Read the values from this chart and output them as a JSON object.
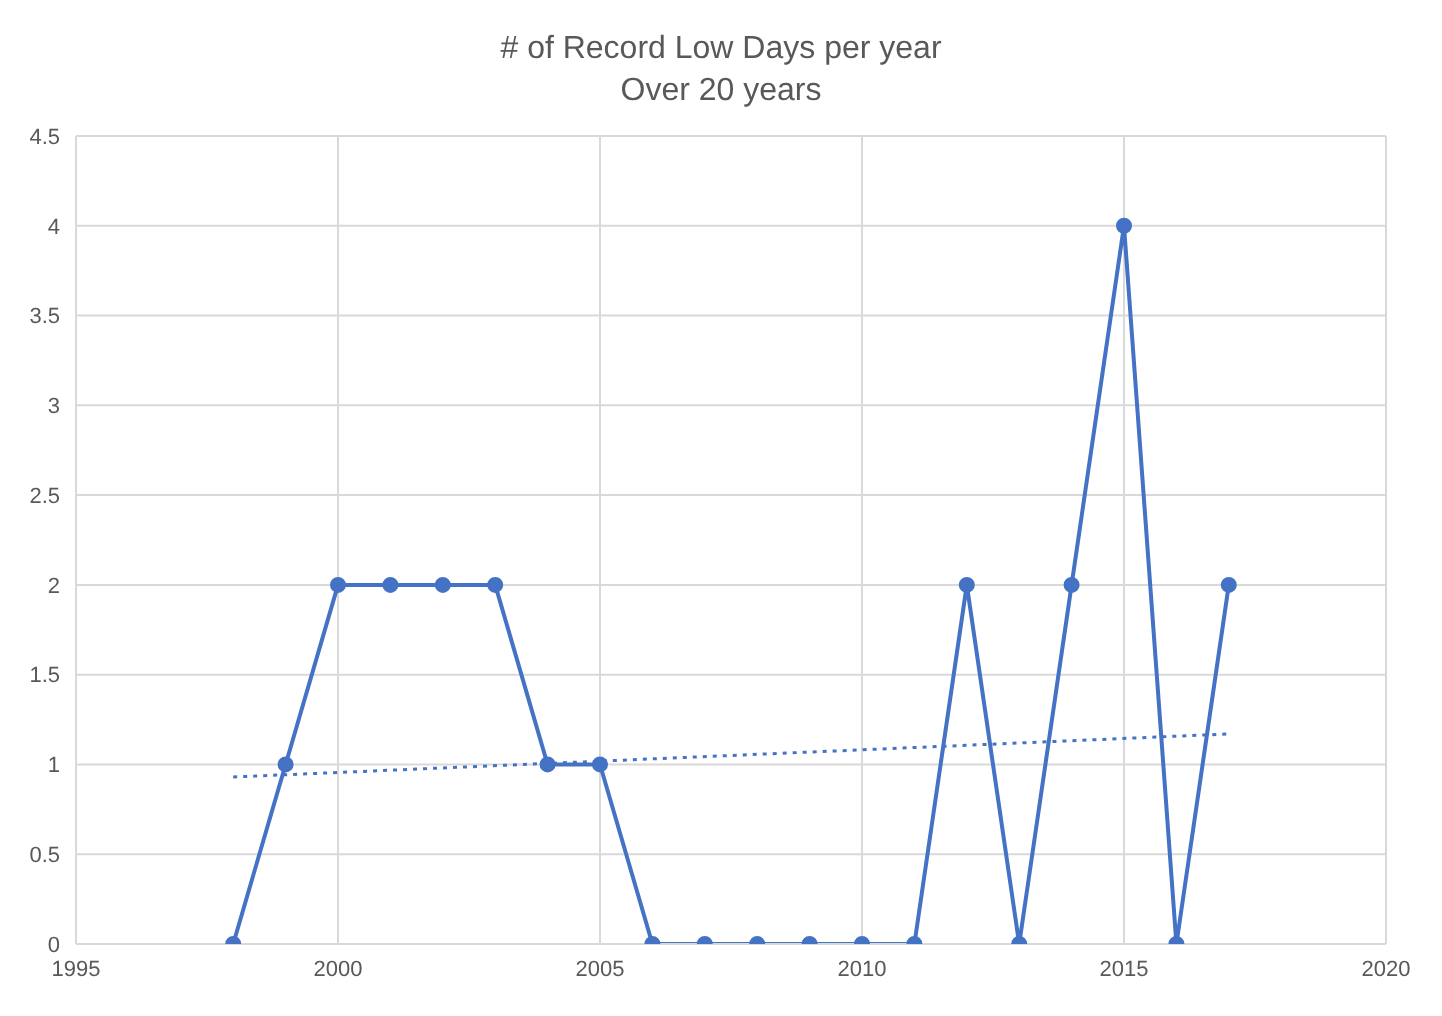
{
  "chart_data": {
    "type": "line",
    "title": "# of Record Low Days per year",
    "subtitle": "Over 20 years",
    "x": [
      1998,
      1999,
      2000,
      2001,
      2002,
      2003,
      2004,
      2005,
      2006,
      2007,
      2008,
      2009,
      2010,
      2011,
      2012,
      2013,
      2014,
      2015,
      2016,
      2017
    ],
    "series": [
      {
        "color": "#4472c4",
        "values": [
          0,
          1,
          2,
          2,
          2,
          2,
          1,
          1,
          0,
          0,
          0,
          0,
          0,
          0,
          2,
          0,
          2,
          4,
          0,
          2
        ]
      },
      {
        "type": "line",
        "color": "#4472c4",
        "x": [
          1998,
          2017
        ],
        "values": [
          0.93,
          1.17
        ],
        "line_style": "dotted",
        "marker": "none"
      }
    ],
    "xlim": [
      1995,
      2020
    ],
    "xticks": [
      1995,
      2000,
      2005,
      2010,
      2015,
      2020
    ],
    "ylim": [
      0,
      4.5
    ],
    "yticks": [
      0,
      0.5,
      1,
      1.5,
      2,
      2.5,
      3,
      3.5,
      4,
      4.5
    ],
    "grid": true,
    "marker": "circle",
    "line_style": "solid"
  }
}
